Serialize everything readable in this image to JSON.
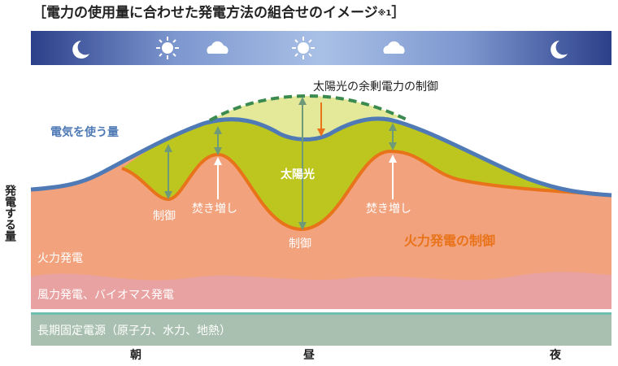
{
  "header": {
    "title": "［電力の使用量に合わせた発電方法の組合せのイメージ",
    "note": "※1",
    "close": "］"
  },
  "y_axis_label": "発電する量",
  "annotations": {
    "curtail_surplus": "太陽光の余剰電力の制御",
    "demand": "電気を使う量",
    "solar": "太陽光",
    "control_morning": "制御",
    "ramp_up_morning": "焚き増し",
    "control_noon": "制御",
    "ramp_up_evening": "焚き増し",
    "thermal_control": "火力発電の制御"
  },
  "bands": {
    "thermal": "火力発電",
    "renewable": "風力発電、バイオマス発電",
    "baseload": "長期固定電源（原子力、水力、地熱）"
  },
  "time_labels": {
    "morning": "朝",
    "noon": "昼",
    "night": "夜"
  }
}
